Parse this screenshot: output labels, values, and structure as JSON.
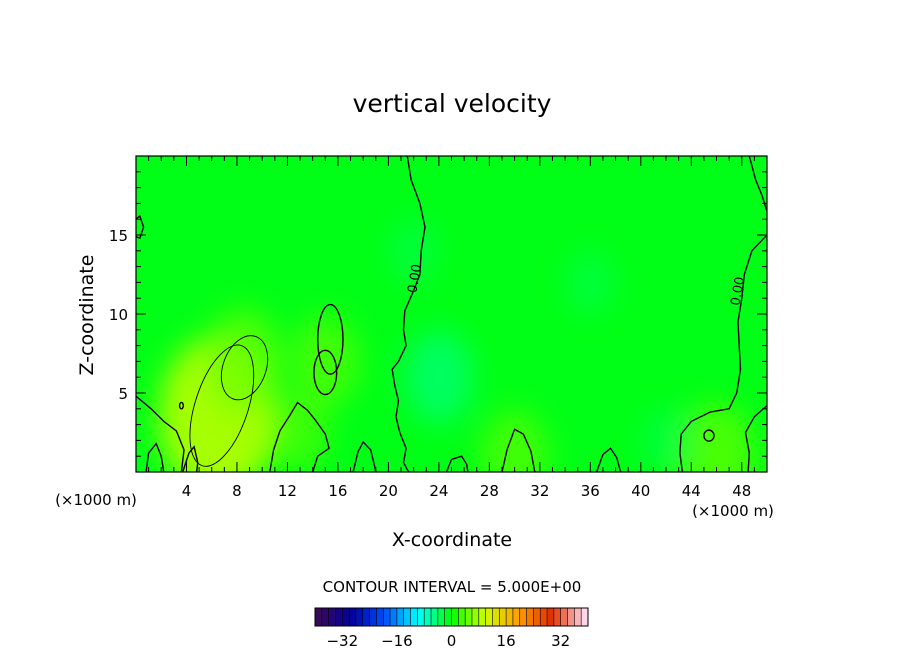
{
  "chart_data": {
    "type": "heatmap",
    "title": "vertical velocity",
    "xlabel": "X-coordinate",
    "ylabel": "Z-coordinate",
    "x_unit": "(×1000 m)",
    "y_unit": "(×1000 m)",
    "xlim": [
      0,
      50
    ],
    "ylim": [
      0,
      20
    ],
    "x_ticks": [
      4,
      8,
      12,
      16,
      20,
      24,
      28,
      32,
      36,
      40,
      44,
      48
    ],
    "y_ticks": [
      5,
      10,
      15
    ],
    "contour_interval_text": "CONTOUR INTERVAL = 5.000E+00",
    "zero_contour_label": "0.00",
    "colorbar": {
      "range": [
        -40,
        40
      ],
      "ticks": [
        -32,
        -16,
        0,
        16,
        32
      ],
      "colors": [
        "#3a0a5a",
        "#0000a0",
        "#0050ff",
        "#00ffff",
        "#00ff00",
        "#ccff00",
        "#ffa000",
        "#e03000",
        "#ffd6ea"
      ]
    },
    "background_color": "#00ff16",
    "features": [
      {
        "kind": "updraft",
        "x": 6.5,
        "z": 3.5,
        "w": 9
      },
      {
        "kind": "updraft",
        "x": 8.5,
        "z": 7.0,
        "w": 5
      },
      {
        "kind": "updraft",
        "x": 15.0,
        "z": 7.0,
        "w": 4
      },
      {
        "kind": "updraft",
        "x": 13.0,
        "z": 2.5,
        "w": 3
      },
      {
        "kind": "updraft",
        "x": 30.0,
        "z": 1.0,
        "w": 4
      },
      {
        "kind": "updraft",
        "x": 46.0,
        "z": 1.0,
        "w": 5
      },
      {
        "kind": "downdraft",
        "x": 24.0,
        "z": 6.0,
        "w": -4
      },
      {
        "kind": "downdraft",
        "x": 22.0,
        "z": 14.0,
        "w": -2
      },
      {
        "kind": "downdraft",
        "x": 36.0,
        "z": 12.0,
        "w": -2
      },
      {
        "kind": "downdraft",
        "x": 42.0,
        "z": 2.0,
        "w": -2
      }
    ]
  }
}
